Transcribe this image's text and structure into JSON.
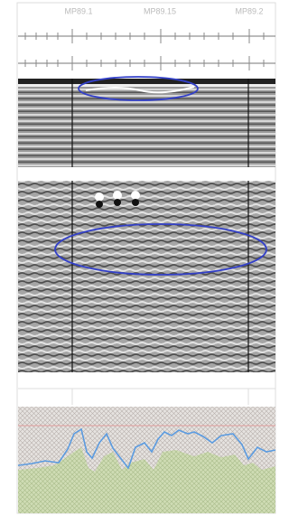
{
  "ruler": {
    "labels": [
      "MP89.1",
      "MP89.15",
      "MP89.2"
    ]
  }
}
